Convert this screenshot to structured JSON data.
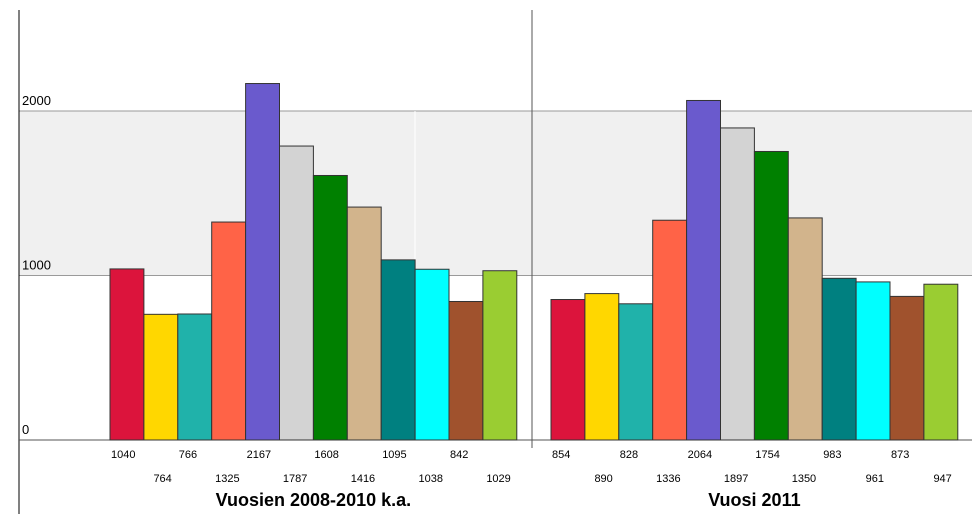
{
  "chart_data": {
    "type": "bar",
    "y_ticks": [
      0,
      1000,
      2000
    ],
    "ylim": [
      0,
      2600
    ],
    "grid": true,
    "colors": [
      "#dc143c",
      "#ffd700",
      "#20b2aa",
      "#ff6347",
      "#6a5acd",
      "#d3d3d3",
      "#008000",
      "#d2b48c",
      "#008080",
      "#00ffff",
      "#a0522d",
      "#9acd32"
    ],
    "groups": [
      {
        "label": "Vuosien 2008-2010 k.a.",
        "values": [
          1040,
          764,
          766,
          1325,
          2167,
          1787,
          1608,
          1416,
          1095,
          1038,
          842,
          1029
        ]
      },
      {
        "label": "Vuosi 2011",
        "values": [
          854,
          890,
          828,
          1336,
          2064,
          1897,
          1754,
          1350,
          983,
          961,
          873,
          947
        ]
      }
    ]
  }
}
